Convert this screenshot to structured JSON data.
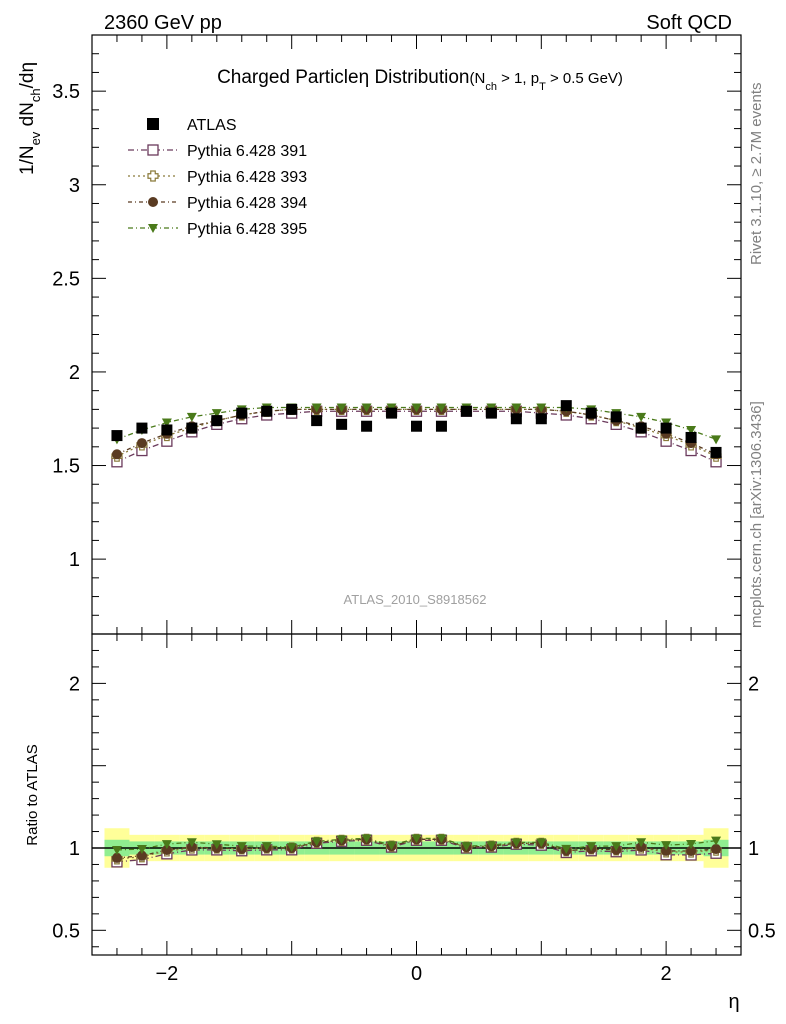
{
  "header": {
    "left": "2360 GeV pp",
    "right": "Soft QCD"
  },
  "side_labels": {
    "rivet": "Rivet 3.1.10, ≥ 2.7M events",
    "mcplots": "mcplots.cern.ch [arXiv:1306.3436]"
  },
  "chart_data": {
    "type": "scatter",
    "title": "Charged Particleη Distribution",
    "subtitle": {
      "text_a": "(N",
      "sub_a": "ch",
      "text_b": " > 1, p",
      "sub_b": "T",
      "text_c": " > 0.5 GeV)"
    },
    "analysis_id": "ATLAS_2010_S8918562",
    "xlabel": "η",
    "ylabel": {
      "a": "1/N",
      "sub_a": "ev",
      "b": " dN",
      "sub_b": "ch",
      "c": "/dη"
    },
    "ratio_ylabel": "Ratio to ATLAS",
    "xlim": [
      -2.6,
      2.6
    ],
    "ylim": [
      0.6,
      3.8
    ],
    "ratio_ylim": [
      0.35,
      2.3
    ],
    "x_ticks": [
      -2,
      0,
      2
    ],
    "x_tick_labels": [
      "−2",
      "0",
      "2"
    ],
    "y_ticks": [
      1,
      1.5,
      2,
      2.5,
      3,
      3.5
    ],
    "y_tick_labels": [
      "1",
      "1.5",
      "2",
      "2.5",
      "3",
      "3.5"
    ],
    "ratio_y_ticks": [
      0.5,
      1,
      2
    ],
    "ratio_y_tick_labels": [
      "0.5",
      "1",
      "2"
    ],
    "x": [
      -2.4,
      -2.2,
      -2.0,
      -1.8,
      -1.6,
      -1.4,
      -1.2,
      -1.0,
      -0.8,
      -0.6,
      -0.4,
      -0.2,
      0.0,
      0.2,
      0.4,
      0.6,
      0.8,
      1.0,
      1.2,
      1.4,
      1.6,
      1.8,
      2.0,
      2.2,
      2.4
    ],
    "reference": {
      "name": "ATLAS",
      "values": [
        1.66,
        1.7,
        1.69,
        1.7,
        1.74,
        1.78,
        1.79,
        1.8,
        1.74,
        1.72,
        1.71,
        1.78,
        1.71,
        1.71,
        1.79,
        1.78,
        1.75,
        1.75,
        1.82,
        1.78,
        1.76,
        1.7,
        1.7,
        1.65,
        1.57
      ],
      "band_stat": [
        0.05,
        0.04,
        0.04,
        0.04,
        0.04,
        0.04,
        0.04,
        0.04,
        0.04,
        0.04,
        0.04,
        0.04,
        0.04,
        0.04,
        0.04,
        0.04,
        0.04,
        0.04,
        0.04,
        0.04,
        0.04,
        0.04,
        0.04,
        0.04,
        0.05
      ],
      "band_total": [
        0.12,
        0.08,
        0.08,
        0.08,
        0.08,
        0.08,
        0.08,
        0.08,
        0.08,
        0.08,
        0.08,
        0.08,
        0.08,
        0.08,
        0.08,
        0.08,
        0.08,
        0.08,
        0.08,
        0.08,
        0.08,
        0.08,
        0.08,
        0.08,
        0.12
      ]
    },
    "series": [
      {
        "name": "Pythia 6.428 391",
        "color": "#6b3a5c",
        "marker": "open-square",
        "dash": "6,3,1,3",
        "values": [
          1.52,
          1.58,
          1.63,
          1.68,
          1.72,
          1.75,
          1.77,
          1.78,
          1.79,
          1.79,
          1.79,
          1.79,
          1.79,
          1.79,
          1.79,
          1.79,
          1.79,
          1.78,
          1.77,
          1.75,
          1.72,
          1.68,
          1.63,
          1.58,
          1.52
        ]
      },
      {
        "name": "Pythia 6.428 393",
        "color": "#8a7a3a",
        "marker": "open-cross",
        "dash": "2,3",
        "values": [
          1.55,
          1.61,
          1.66,
          1.7,
          1.74,
          1.77,
          1.79,
          1.8,
          1.8,
          1.8,
          1.8,
          1.8,
          1.8,
          1.8,
          1.8,
          1.8,
          1.8,
          1.8,
          1.79,
          1.77,
          1.74,
          1.7,
          1.66,
          1.61,
          1.55
        ]
      },
      {
        "name": "Pythia 6.428 394",
        "color": "#5a3b22",
        "marker": "filled-circle",
        "dash": "4,3,1,3",
        "values": [
          1.56,
          1.62,
          1.67,
          1.71,
          1.74,
          1.77,
          1.79,
          1.8,
          1.8,
          1.8,
          1.8,
          1.8,
          1.8,
          1.8,
          1.8,
          1.8,
          1.8,
          1.8,
          1.79,
          1.77,
          1.74,
          1.71,
          1.67,
          1.62,
          1.56
        ]
      },
      {
        "name": "Pythia 6.428 395",
        "color": "#4a7a1a",
        "marker": "filled-triangle-down",
        "dash": "5,3,1,3",
        "values": [
          1.64,
          1.69,
          1.73,
          1.76,
          1.78,
          1.8,
          1.81,
          1.81,
          1.81,
          1.81,
          1.81,
          1.81,
          1.81,
          1.81,
          1.81,
          1.81,
          1.81,
          1.81,
          1.81,
          1.8,
          1.78,
          1.76,
          1.73,
          1.69,
          1.64
        ]
      }
    ],
    "legend_placement": "top-left",
    "colors": {
      "band_stat": "#90ee90",
      "band_total": "#ffff99"
    }
  }
}
